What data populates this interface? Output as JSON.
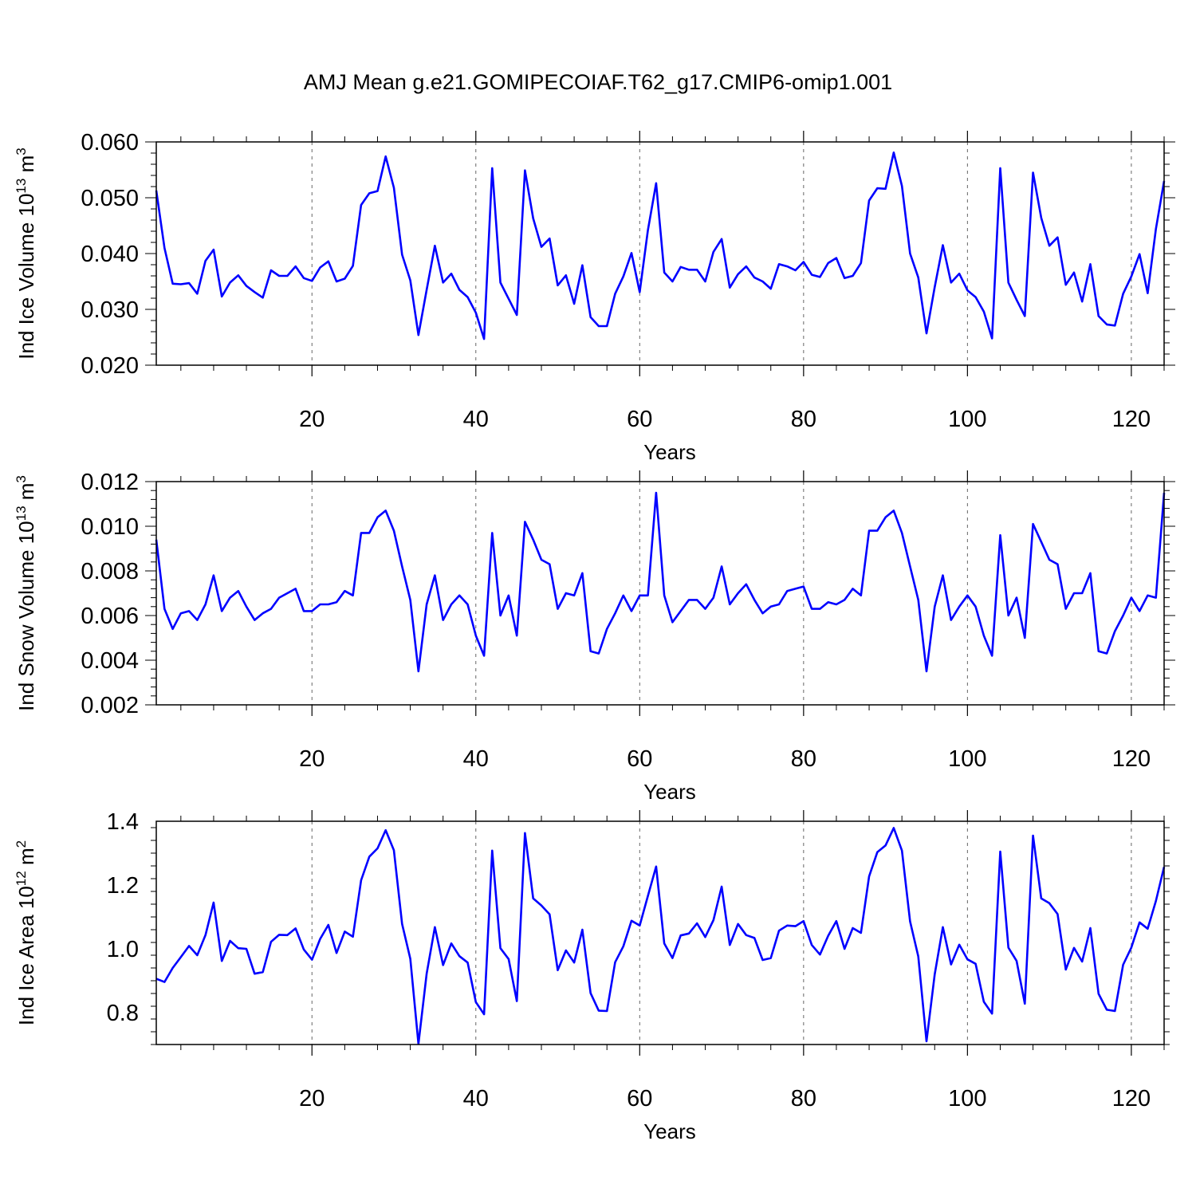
{
  "title": "AMJ Mean g.e21.GOMIPECOIAF.T62_g17.CMIP6-omip1.001",
  "line_color": "#0000ff",
  "chart_data": [
    {
      "type": "line",
      "xlabel": "Years",
      "ylabel": "Ind Ice Volume 10",
      "ylabel_sup": "13",
      "ylabel_unit": " m",
      "ylabel_unit_sup": "3",
      "xlim": [
        1,
        124
      ],
      "ylim": [
        0.02,
        0.06
      ],
      "xticks": [
        20,
        40,
        60,
        80,
        100,
        120
      ],
      "yticks": [
        "0.020",
        "0.030",
        "0.040",
        "0.050",
        "0.060"
      ],
      "grid": "x-dashed",
      "series": [
        {
          "values": [
            0.0513,
            0.041,
            0.0346,
            0.0345,
            0.0347,
            0.0328,
            0.0387,
            0.0407,
            0.0323,
            0.0348,
            0.0361,
            0.0342,
            0.0331,
            0.0321,
            0.037,
            0.036,
            0.036,
            0.0377,
            0.0356,
            0.0351,
            0.0375,
            0.0386,
            0.035,
            0.0355,
            0.0378,
            0.0487,
            0.0508,
            0.0512,
            0.0574,
            0.0518,
            0.0398,
            0.0352,
            0.0254,
            0.0335,
            0.0414,
            0.0348,
            0.0364,
            0.0335,
            0.0322,
            0.0294,
            0.0247,
            0.0553,
            0.0348,
            0.0319,
            0.029,
            0.0549,
            0.0463,
            0.0412,
            0.0427,
            0.0343,
            0.0361,
            0.031,
            0.0379,
            0.0286,
            0.027,
            0.027,
            0.0328,
            0.0359,
            0.0401,
            0.0331,
            0.0442,
            0.0526,
            0.0366,
            0.035,
            0.0376,
            0.0371,
            0.0371,
            0.035,
            0.0403,
            0.0426,
            0.0339,
            0.0363,
            0.0377,
            0.0357,
            0.035,
            0.0337,
            0.0381,
            0.0377,
            0.037,
            0.0385,
            0.0362,
            0.0358,
            0.0383,
            0.0392,
            0.0356,
            0.036,
            0.0383,
            0.0495,
            0.0517,
            0.0516,
            0.0581,
            0.0521,
            0.04,
            0.0357,
            0.0257,
            0.034,
            0.0415,
            0.0348,
            0.0364,
            0.0334,
            0.0322,
            0.0296,
            0.0248,
            0.0553,
            0.0348,
            0.0317,
            0.0288,
            0.0545,
            0.0464,
            0.0414,
            0.0429,
            0.0344,
            0.0366,
            0.0314,
            0.0381,
            0.0288,
            0.0273,
            0.0271,
            0.0328,
            0.0359,
            0.0399,
            0.0329,
            0.0444,
            0.053
          ]
        }
      ]
    },
    {
      "type": "line",
      "xlabel": "Years",
      "ylabel": "Ind Snow Volume 10",
      "ylabel_sup": "13",
      "ylabel_unit": " m",
      "ylabel_unit_sup": "3",
      "xlim": [
        1,
        124
      ],
      "ylim": [
        0.002,
        0.012
      ],
      "xticks": [
        20,
        40,
        60,
        80,
        100,
        120
      ],
      "yticks": [
        "0.002",
        "0.004",
        "0.006",
        "0.008",
        "0.010",
        "0.012"
      ],
      "grid": "x-dashed",
      "series": [
        {
          "values": [
            0.0094,
            0.0063,
            0.0054,
            0.0061,
            0.0062,
            0.0058,
            0.0065,
            0.0078,
            0.0062,
            0.0068,
            0.0071,
            0.0064,
            0.0058,
            0.0061,
            0.0063,
            0.0068,
            0.007,
            0.0072,
            0.0062,
            0.0062,
            0.0065,
            0.0065,
            0.0066,
            0.0071,
            0.0069,
            0.0097,
            0.0097,
            0.0104,
            0.0107,
            0.0098,
            0.0082,
            0.0067,
            0.0035,
            0.0065,
            0.0078,
            0.0058,
            0.0065,
            0.0069,
            0.0065,
            0.0051,
            0.0042,
            0.0097,
            0.006,
            0.0069,
            0.0051,
            0.0102,
            0.0094,
            0.0085,
            0.0083,
            0.0063,
            0.007,
            0.0069,
            0.0079,
            0.0044,
            0.0043,
            0.0054,
            0.0061,
            0.0069,
            0.0062,
            0.0069,
            0.0069,
            0.0115,
            0.0069,
            0.0057,
            0.0062,
            0.0067,
            0.0067,
            0.0063,
            0.0068,
            0.0082,
            0.0065,
            0.007,
            0.0074,
            0.0067,
            0.0061,
            0.0064,
            0.0065,
            0.0071,
            0.0072,
            0.0073,
            0.0063,
            0.0063,
            0.0066,
            0.0065,
            0.0067,
            0.0072,
            0.0069,
            0.0098,
            0.0098,
            0.0104,
            0.0107,
            0.0097,
            0.0082,
            0.0067,
            0.0035,
            0.0064,
            0.0078,
            0.0058,
            0.0064,
            0.0069,
            0.0064,
            0.0051,
            0.0042,
            0.0096,
            0.006,
            0.0068,
            0.005,
            0.0101,
            0.0093,
            0.0085,
            0.0083,
            0.0063,
            0.007,
            0.007,
            0.0079,
            0.0044,
            0.0043,
            0.0053,
            0.006,
            0.0068,
            0.0062,
            0.0069,
            0.0068,
            0.0115
          ]
        }
      ]
    },
    {
      "type": "line",
      "xlabel": "Years",
      "ylabel": "Ind Ice Area 10",
      "ylabel_sup": "12",
      "ylabel_unit": " m",
      "ylabel_unit_sup": "2",
      "xlim": [
        1,
        124
      ],
      "ylim": [
        0.7,
        1.4
      ],
      "xticks": [
        20,
        40,
        60,
        80,
        100,
        120
      ],
      "yticks": [
        "0.8",
        "1.0",
        "1.2",
        "1.4"
      ],
      "grid": "x-dashed",
      "series": [
        {
          "values": [
            0.906,
            0.896,
            0.94,
            0.974,
            1.009,
            0.98,
            1.043,
            1.145,
            0.962,
            1.025,
            1.002,
            1.0,
            0.922,
            0.927,
            1.022,
            1.044,
            1.043,
            1.064,
            0.998,
            0.966,
            1.031,
            1.075,
            0.987,
            1.054,
            1.038,
            1.215,
            1.289,
            1.315,
            1.372,
            1.309,
            1.078,
            0.969,
            0.702,
            0.922,
            1.068,
            0.949,
            1.017,
            0.977,
            0.957,
            0.833,
            0.795,
            1.308,
            1.002,
            0.968,
            0.836,
            1.363,
            1.158,
            1.136,
            1.108,
            0.933,
            0.995,
            0.957,
            1.06,
            0.861,
            0.806,
            0.805,
            0.958,
            1.008,
            1.088,
            1.073,
            1.166,
            1.258,
            1.017,
            0.971,
            1.042,
            1.048,
            1.08,
            1.037,
            1.09,
            1.195,
            1.012,
            1.078,
            1.043,
            1.034,
            0.965,
            0.971,
            1.057,
            1.073,
            1.071,
            1.087,
            1.012,
            0.982,
            1.041,
            1.087,
            1.0,
            1.065,
            1.05,
            1.227,
            1.303,
            1.324,
            1.379,
            1.308,
            1.086,
            0.976,
            0.71,
            0.92,
            1.068,
            0.951,
            1.013,
            0.967,
            0.953,
            0.834,
            0.797,
            1.305,
            1.004,
            0.962,
            0.828,
            1.355,
            1.158,
            1.143,
            1.109,
            0.935,
            1.003,
            0.96,
            1.065,
            0.859,
            0.809,
            0.805,
            0.95,
            1.004,
            1.083,
            1.063,
            1.15,
            1.257
          ]
        }
      ]
    }
  ]
}
